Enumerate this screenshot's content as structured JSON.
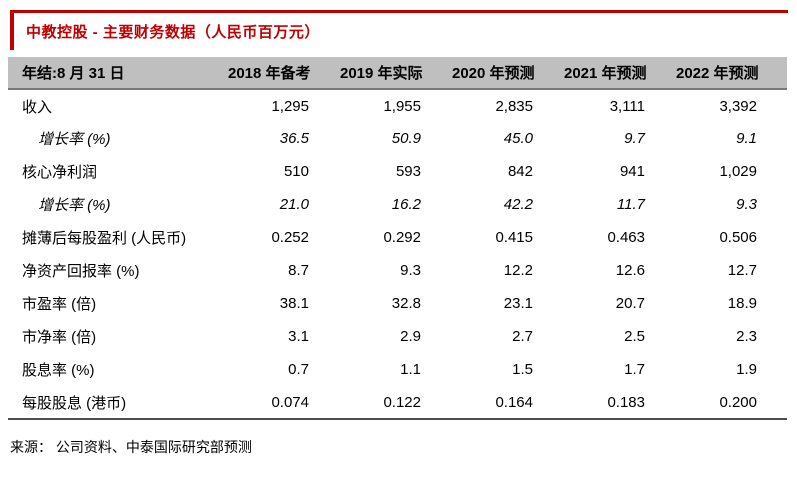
{
  "title": "中教控股 - 主要财务数据（人民币百万元）",
  "colors": {
    "accent_red": "#c00000",
    "header_bg": "#bfbfbf",
    "header_rule": "#777777",
    "bottom_rule": "#4d4d4d",
    "text": "#000000"
  },
  "table": {
    "header": {
      "label": "年结:8 月 31 日",
      "columns": [
        "2018 年备考",
        "2019 年实际",
        "2020 年预测",
        "2021 年预测",
        "2022 年预测"
      ]
    },
    "rows": [
      {
        "label": "收入",
        "values": [
          "1,295",
          "1,955",
          "2,835",
          "3,111",
          "3,392"
        ]
      },
      {
        "label": "增长率 (%)",
        "values": [
          "36.5",
          "50.9",
          "45.0",
          "9.7",
          "9.1"
        ]
      },
      {
        "label": "核心净利润",
        "values": [
          "510",
          "593",
          "842",
          "941",
          "1,029"
        ]
      },
      {
        "label": "增长率 (%)",
        "values": [
          "21.0",
          "16.2",
          "42.2",
          "11.7",
          "9.3"
        ]
      },
      {
        "label": "摊薄后每股盈利 (人民币)",
        "values": [
          "0.252",
          "0.292",
          "0.415",
          "0.463",
          "0.506"
        ]
      },
      {
        "label": "净资产回报率 (%)",
        "values": [
          "8.7",
          "9.3",
          "12.2",
          "12.6",
          "12.7"
        ]
      },
      {
        "label": "市盈率 (倍)",
        "values": [
          "38.1",
          "32.8",
          "23.1",
          "20.7",
          "18.9"
        ]
      },
      {
        "label": "市净率 (倍)",
        "values": [
          "3.1",
          "2.9",
          "2.7",
          "2.5",
          "2.3"
        ]
      },
      {
        "label": "股息率 (%)",
        "values": [
          "0.7",
          "1.1",
          "1.5",
          "1.7",
          "1.9"
        ]
      },
      {
        "label": "每股股息 (港币)",
        "values": [
          "0.074",
          "0.122",
          "0.164",
          "0.183",
          "0.200"
        ]
      }
    ]
  },
  "source": "来源： 公司资料、中泰国际研究部预测"
}
